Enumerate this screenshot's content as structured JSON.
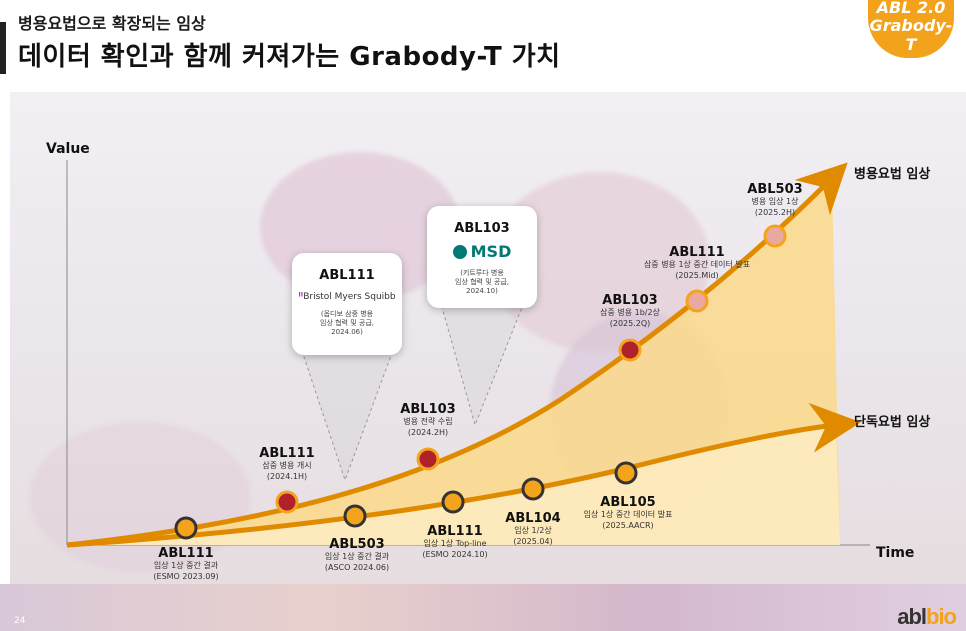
{
  "header": {
    "subtitle": "병용요법으로 확장되는 임상",
    "title": "데이터 확인과 함께 커져가는 Grabody-T 가치",
    "badge_line1": "ABL 2.0",
    "badge_line2": "Grabody-T"
  },
  "axes": {
    "y_label": "Value",
    "x_label": "Time"
  },
  "curves": {
    "combo_label": "병용요법 임상",
    "mono_label": "단독요법 임상"
  },
  "milestones": {
    "abl111_esmo": {
      "name": "ABL111",
      "line1": "임상 1상 중간 결과",
      "line2": "(ESMO 2023.09)"
    },
    "abl111_combo": {
      "name": "ABL111",
      "line1": "삼중 병용 개시",
      "line2": "(2024.1H)"
    },
    "abl503_asco": {
      "name": "ABL503",
      "line1": "임상 1상 중간 결과",
      "line2": "(ASCO 2024.06)"
    },
    "abl103_strategy": {
      "name": "ABL103",
      "line1": "병용 전략 수립",
      "line2": "(2024.2H)"
    },
    "abl111_topline": {
      "name": "ABL111",
      "line1": "임상 1상 Top-line",
      "line2": "(ESMO 2024.10)"
    },
    "abl104": {
      "name": "ABL104",
      "line1": "임상 1/2상",
      "line2": "(2025.04)"
    },
    "abl105": {
      "name": "ABL105",
      "line1": "임상 1상 중간 데이터 발표",
      "line2": "(2025.AACR)"
    },
    "abl103_phase": {
      "name": "ABL103",
      "line1": "삼중 병용 1b/2상",
      "line2": "(2025.2Q)"
    },
    "abl111_mid": {
      "name": "ABL111",
      "line1": "삼중 병용 1상 중간 데이터 발표",
      "line2": "(2025.Mid)"
    },
    "abl503_combo": {
      "name": "ABL503",
      "line1": "병용 임상 1상",
      "line2": "(2025.2H)"
    }
  },
  "popups": {
    "bms": {
      "title": "ABL111",
      "partner": "Bristol Myers Squibb",
      "desc1": "(옵디보 삼중 병용",
      "desc2": "임상 협력 및 공급,",
      "desc3": "2024.06)"
    },
    "msd": {
      "title": "ABL103",
      "partner": "MSD",
      "desc1": "(키트루다 병용",
      "desc2": "임상 협력 및 공급,",
      "desc3": "2024.10)"
    }
  },
  "footer": {
    "page_number": "24",
    "logo_main": "abl",
    "logo_accent": "bio"
  },
  "colors": {
    "orange": "#e08a00",
    "dot_orange": "#f4a41c",
    "dot_red": "#b0212b",
    "dot_pink": "#e9a9a1",
    "fill_light": "#fde7b6"
  }
}
